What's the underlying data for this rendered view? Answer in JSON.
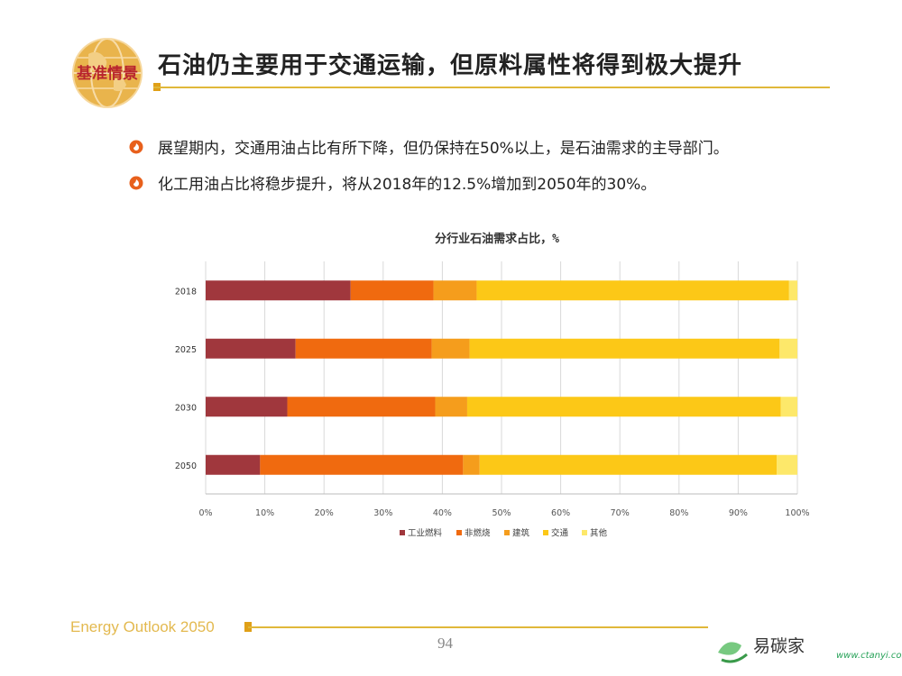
{
  "header": {
    "logo_text": "基准情景",
    "title": "石油仍主要用于交通运输，但原料属性将得到极大提升"
  },
  "bullets": [
    "展望期内，交通用油占比有所下降，但仍保持在50%以上，是石油需求的主导部门。",
    "化工用油占比将稳步提升，将从2018年的12.5%增加到2050年的30%。"
  ],
  "chart_data": {
    "type": "bar",
    "orientation": "horizontal",
    "stacked": true,
    "title": "分行业石油需求占比，%",
    "categories": [
      "2018",
      "2025",
      "2030",
      "2050"
    ],
    "series": [
      {
        "name": "工业燃料",
        "color": "#a0373d",
        "values": [
          24.5,
          15.2,
          13.8,
          9.2
        ]
      },
      {
        "name": "非燃烧",
        "color": "#f06a0f",
        "values": [
          14.0,
          23.0,
          25.0,
          34.3
        ]
      },
      {
        "name": "建筑",
        "color": "#f59d1c",
        "values": [
          7.3,
          6.4,
          5.4,
          2.8
        ]
      },
      {
        "name": "交通",
        "color": "#fcc817",
        "values": [
          52.8,
          52.4,
          53.0,
          50.2
        ]
      },
      {
        "name": "其他",
        "color": "#fde86a",
        "values": [
          1.4,
          3.0,
          2.8,
          3.5
        ]
      }
    ],
    "xticks": [
      "0%",
      "10%",
      "20%",
      "30%",
      "40%",
      "50%",
      "60%",
      "70%",
      "80%",
      "90%",
      "100%"
    ],
    "xlim": [
      0,
      100
    ],
    "grid": true,
    "legend": "bottom"
  },
  "footer": {
    "left_text": "Energy Outlook 2050",
    "page_number": "94",
    "watermark_text": "易碳家",
    "watermark_url": "www.ctanyi.com"
  },
  "colors": {
    "accent": "#e0b83a",
    "bullet": "#e8601c"
  }
}
